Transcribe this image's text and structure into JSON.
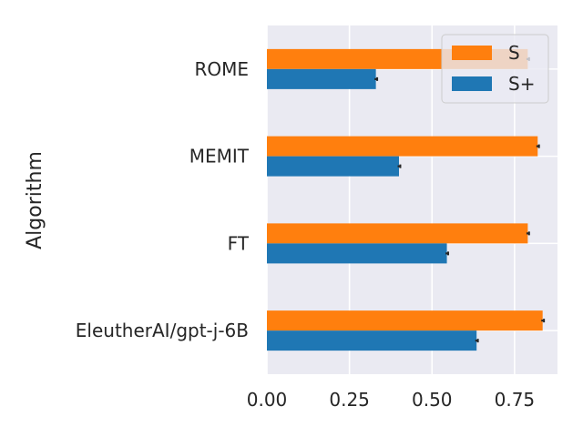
{
  "chart_data": {
    "type": "bar",
    "orientation": "horizontal",
    "title": "",
    "xlabel": "",
    "ylabel": "Algorithm",
    "categories": [
      "ROME",
      "MEMIT",
      "FT",
      "EleutherAI/gpt-j-6B"
    ],
    "series": [
      {
        "name": "S",
        "color": "#ff7f0e",
        "values": [
          0.79,
          0.82,
          0.79,
          0.835
        ],
        "errors": [
          0.004,
          0.004,
          0.004,
          0.004
        ]
      },
      {
        "name": "S+",
        "color": "#1f77b4",
        "values": [
          0.33,
          0.4,
          0.545,
          0.635
        ],
        "errors": [
          0.004,
          0.004,
          0.004,
          0.004
        ]
      }
    ],
    "xlim": [
      0,
      0.88
    ],
    "xticks": [
      0.0,
      0.25,
      0.5,
      0.75
    ],
    "xtick_labels": [
      "0.00",
      "0.25",
      "0.50",
      "0.75"
    ],
    "grid": true,
    "legend_position": "top-right",
    "background": "#eaeaf2"
  }
}
